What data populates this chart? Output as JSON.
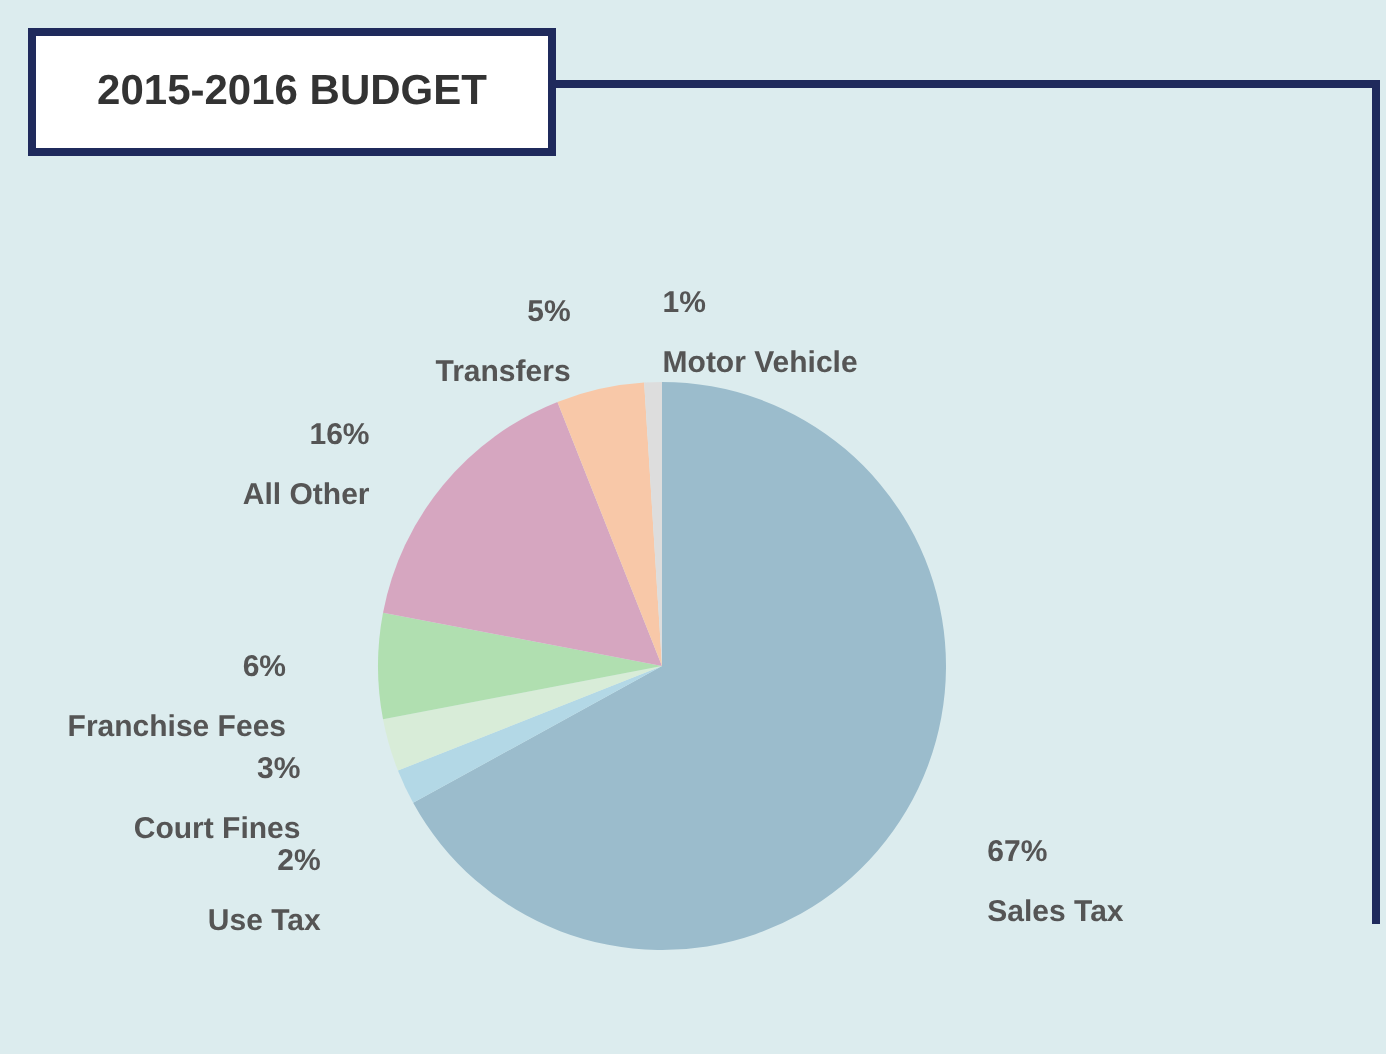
{
  "chart_data": {
    "type": "pie",
    "title": "2015-2016 BUDGET",
    "categories": [
      "Sales Tax",
      "Use Tax",
      "Court Fines",
      "Franchise Fees",
      "All Other",
      "Transfers",
      "Motor Vehicle"
    ],
    "values": [
      67,
      2,
      3,
      6,
      16,
      5,
      1
    ],
    "value_labels": [
      "67%",
      "2%",
      "3%",
      "6%",
      "16%",
      "5%",
      "1%"
    ],
    "colors": [
      "#9bbccc",
      "#b3d8e6",
      "#d8ecd8",
      "#b0dfb0",
      "#d6a6c0",
      "#f8c8a8",
      "#dddddd"
    ]
  }
}
